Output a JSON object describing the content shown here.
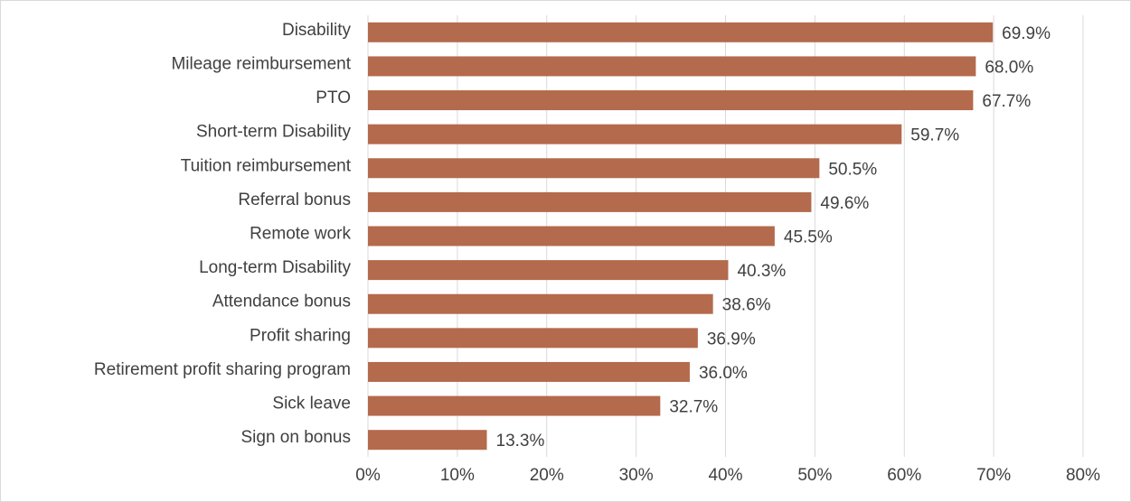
{
  "chart_data": {
    "type": "bar",
    "orientation": "horizontal",
    "categories": [
      "Disability",
      "Mileage reimbursement",
      "PTO",
      "Short-term Disability",
      "Tuition reimbursement",
      "Referral bonus",
      "Remote work",
      "Long-term Disability",
      "Attendance bonus",
      "Profit sharing",
      "Retirement profit sharing program",
      "Sick leave",
      "Sign on bonus"
    ],
    "values": [
      69.9,
      68.0,
      67.7,
      59.7,
      50.5,
      49.6,
      45.5,
      40.3,
      38.6,
      36.9,
      36.0,
      32.7,
      13.3
    ],
    "value_labels": [
      "69.9%",
      "68.0%",
      "67.7%",
      "59.7%",
      "50.5%",
      "49.6%",
      "45.5%",
      "40.3%",
      "38.6%",
      "36.9%",
      "36.0%",
      "32.7%",
      "13.3%"
    ],
    "color": "#b46a4c",
    "xlim": [
      0,
      80
    ],
    "xticks": [
      {
        "value": 0,
        "label": "0%"
      },
      {
        "value": 10,
        "label": "10%"
      },
      {
        "value": 20,
        "label": "20%"
      },
      {
        "value": 30,
        "label": "30%"
      },
      {
        "value": 40,
        "label": "40%"
      },
      {
        "value": 50,
        "label": "50%"
      },
      {
        "value": 60,
        "label": "60%"
      },
      {
        "value": 70,
        "label": "70%"
      },
      {
        "value": 80,
        "label": "80%"
      }
    ],
    "grid": true
  }
}
